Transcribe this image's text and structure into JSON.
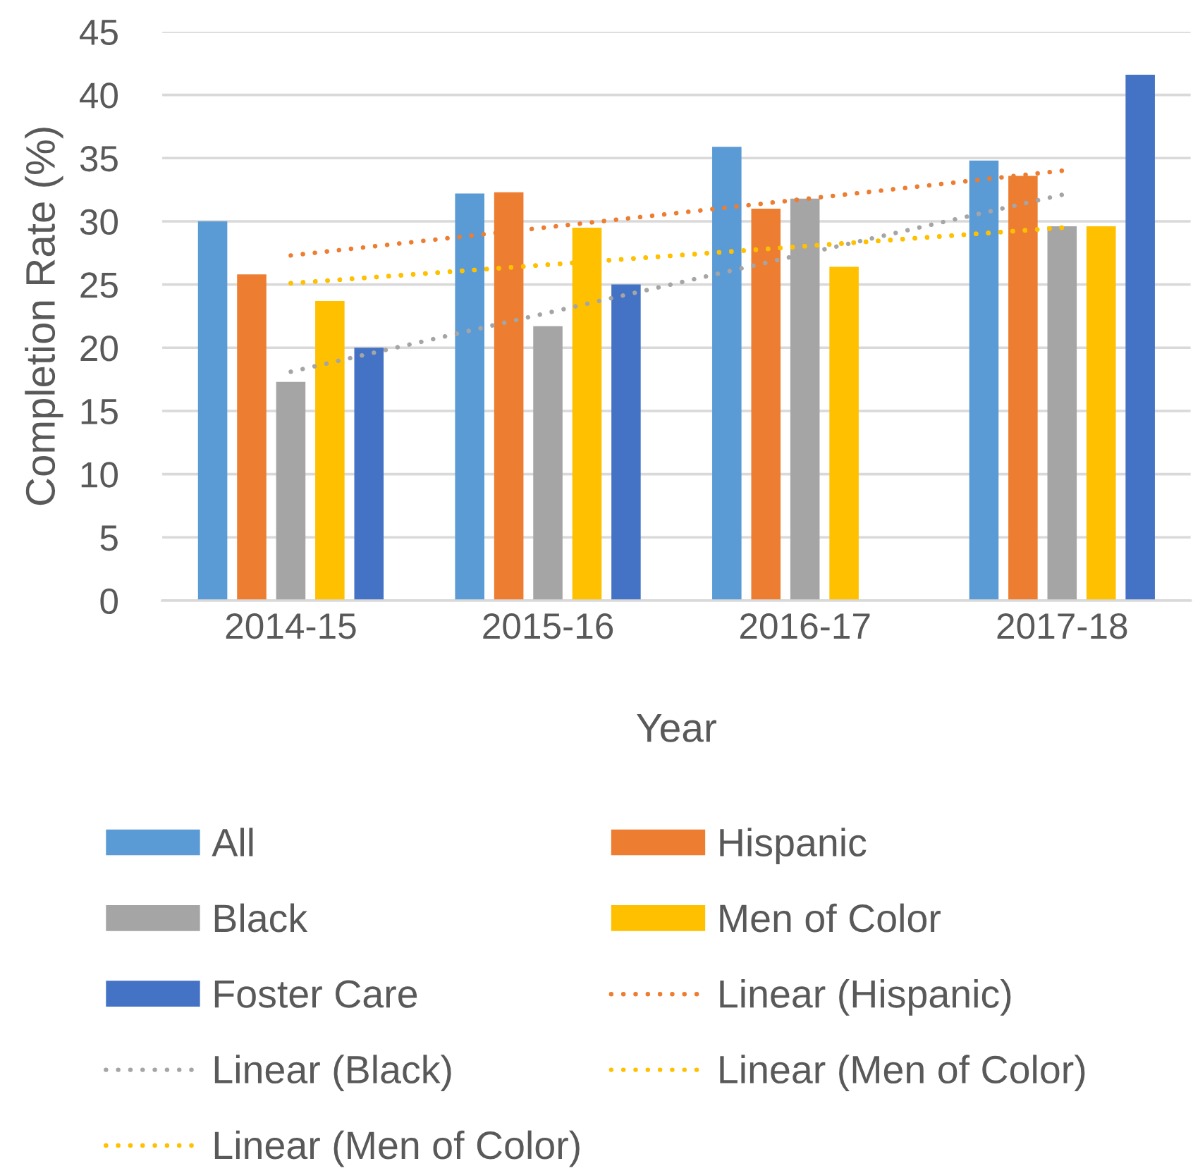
{
  "chart_data": {
    "type": "bar",
    "categories": [
      "2014-15",
      "2015-16",
      "2016-17",
      "2017-18"
    ],
    "xlabel": "Year",
    "ylabel": "Completion Rate (%)",
    "ylim": [
      0,
      45
    ],
    "yticks": [
      0,
      5,
      10,
      15,
      20,
      25,
      30,
      35,
      40,
      45
    ],
    "grid": "y",
    "legend": "bottom",
    "series": [
      {
        "name": "All",
        "color": "#5b9bd5",
        "values": [
          30.0,
          32.2,
          35.9,
          34.8
        ]
      },
      {
        "name": "Hispanic",
        "color": "#ed7d31",
        "values": [
          25.8,
          32.3,
          31.0,
          33.6
        ]
      },
      {
        "name": "Black",
        "color": "#a5a5a5",
        "values": [
          17.3,
          21.7,
          31.8,
          29.6
        ]
      },
      {
        "name": "Men of Color",
        "color": "#ffc000",
        "values": [
          23.7,
          29.5,
          26.4,
          29.6
        ]
      },
      {
        "name": "Foster Care",
        "color": "#4472c4",
        "values": [
          20.0,
          25.0,
          null,
          41.6
        ]
      },
      {
        "name": "Linear (Hispanic)",
        "type": "line",
        "line_style": "dotted",
        "color": "#ed7d31",
        "x": [
          "2014-15",
          "2017-18"
        ],
        "values": [
          27.3,
          34.0
        ]
      },
      {
        "name": "Linear (Black)",
        "type": "line",
        "line_style": "dotted",
        "color": "#a5a5a5",
        "x": [
          "2014-15",
          "2017-18"
        ],
        "values": [
          18.1,
          32.1
        ]
      },
      {
        "name": "Linear (Men of Color)",
        "type": "line",
        "line_style": "dotted",
        "color": "#ffc000",
        "x": [
          "2014-15",
          "2017-18"
        ],
        "values": [
          25.1,
          29.5
        ]
      },
      {
        "name": "Linear (Men of Color)",
        "type": "line",
        "line_style": "dotted",
        "color": "#ffc000",
        "x": [
          "2014-15",
          "2017-18"
        ],
        "values": [
          25.1,
          29.5
        ]
      }
    ]
  }
}
